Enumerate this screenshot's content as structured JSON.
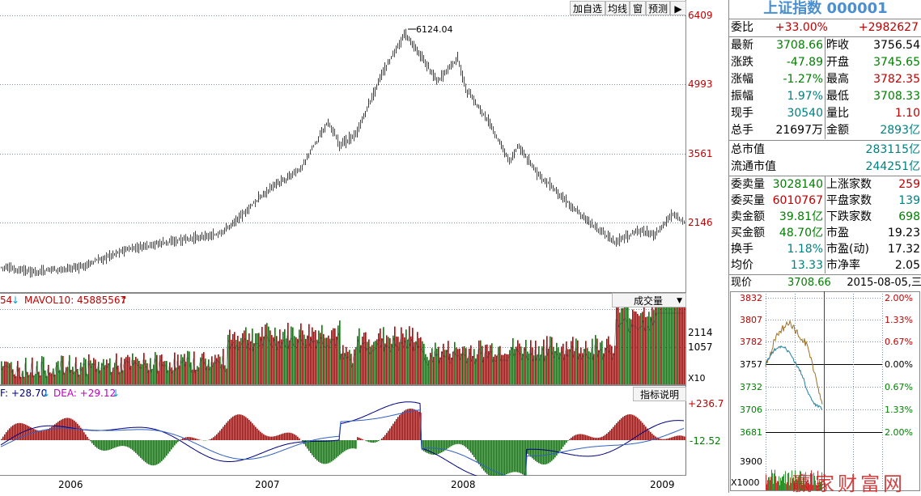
{
  "toolbar": {
    "buttons": [
      "加自选",
      "均线",
      "窗",
      "预测"
    ],
    "arrow_icon": "exit-arrow-icon"
  },
  "kline": {
    "peak_label": "6124.04",
    "y_labels": [
      "6409",
      "4993",
      "3561",
      "2146"
    ]
  },
  "volume": {
    "legend_prefix": "54",
    "legend_text": "MAVOL10: 45885567",
    "selector": "成交量",
    "y_labels": [
      "2114",
      "1057"
    ],
    "unit": "X10"
  },
  "macd": {
    "legend_dif": "F: +28.70",
    "legend_dea": "DEA: +29.12",
    "button": "指标说明",
    "y_labels": [
      "+236.7",
      "-12.52"
    ]
  },
  "xaxis": [
    "2006",
    "2007",
    "2008",
    "2009"
  ],
  "quote": {
    "title": "上证指数 000001",
    "webi_label": "委比",
    "webi_value": "+33.00%",
    "webi_diff": "+2982627",
    "rows": [
      {
        "k1": "最新",
        "v1": "3708.66",
        "c1": "green",
        "k2": "昨收",
        "v2": "3756.54",
        "c2": "black"
      },
      {
        "k1": "涨跌",
        "v1": "-47.89",
        "c1": "green",
        "k2": "开盘",
        "v2": "3745.65",
        "c2": "green"
      },
      {
        "k1": "涨幅",
        "v1": "-1.27%",
        "c1": "green",
        "k2": "最高",
        "v2": "3782.35",
        "c2": "red"
      },
      {
        "k1": "振幅",
        "v1": "1.97%",
        "c1": "teal",
        "k2": "最低",
        "v2": "3708.33",
        "c2": "green"
      },
      {
        "k1": "现手",
        "v1": "30540",
        "c1": "teal",
        "k2": "量比",
        "v2": "1.10",
        "c2": "red"
      },
      {
        "k1": "总手",
        "v1": "21697万",
        "c1": "black",
        "k2": "金额",
        "v2": "2893亿",
        "c2": "teal"
      }
    ],
    "market": [
      {
        "k": "总市值",
        "v": "283115亿"
      },
      {
        "k": "流通市值",
        "v": "244251亿"
      }
    ],
    "orders": [
      {
        "k1": "委卖量",
        "v1": "3028140",
        "c1": "green",
        "k2": "上涨家数",
        "v2": "259",
        "c2": "red"
      },
      {
        "k1": "委买量",
        "v1": "6010767",
        "c1": "red",
        "k2": "平盘家数",
        "v2": "139",
        "c2": "teal"
      },
      {
        "k1": "卖金额",
        "v1": "39.81亿",
        "c1": "green",
        "k2": "下跌家数",
        "v2": "698",
        "c2": "green"
      },
      {
        "k1": "买金额",
        "v1": "48.70亿",
        "c1": "green",
        "k2": "市盈",
        "v2": "19.23",
        "c2": "black"
      },
      {
        "k1": "换手",
        "v1": "1.18%",
        "c1": "teal",
        "k2": "市盈(动)",
        "v2": "17.32",
        "c2": "black"
      },
      {
        "k1": "均价",
        "v1": "13.33",
        "c1": "teal",
        "k2": "市净率",
        "v2": "2.05",
        "c2": "black"
      }
    ],
    "current_label": "现价",
    "current_value": "3708.66",
    "date": "2015-08-05,三"
  },
  "intraday": {
    "left_labels": [
      "3832",
      "3807",
      "3782",
      "3757",
      "3732",
      "3706",
      "3681"
    ],
    "right_labels": [
      "2.00%",
      "1.33%",
      "0.67%",
      "0.00%",
      "0.67%",
      "1.33%",
      "2.00%"
    ],
    "vol_label": "3900",
    "vol_unit": "X1000"
  },
  "watermark": "赢家财富网",
  "colors": {
    "up": "#c00000",
    "down": "#008000",
    "accent": "#4a8fd0",
    "panelborder": "#00aaaa"
  }
}
